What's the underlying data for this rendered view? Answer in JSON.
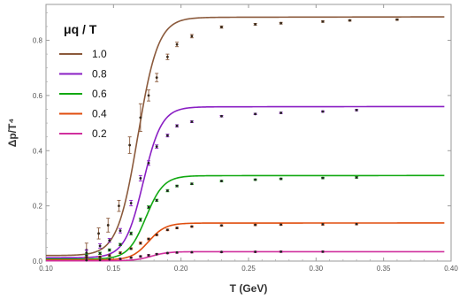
{
  "chart_data": {
    "type": "line",
    "xlabel": "T (GeV)",
    "ylabel": "Δp/T⁴",
    "xlim": [
      0.1,
      0.4
    ],
    "ylim": [
      0,
      0.93
    ],
    "xticks": [
      "0.10",
      "0.15",
      "0.20",
      "0.25",
      "0.30",
      "0.35",
      "0.40"
    ],
    "xtick_values": [
      0.1,
      0.15,
      0.2,
      0.25,
      0.3,
      0.35,
      0.4
    ],
    "yticks": [
      "0.0",
      "0.2",
      "0.4",
      "0.6",
      "0.8"
    ],
    "ytick_values": [
      0,
      0.2,
      0.4,
      0.6,
      0.8
    ],
    "legend_title": "μq / T",
    "legend_position": "top-left",
    "grid": false,
    "series": [
      {
        "name": "1.0",
        "color": "#8b5a3c",
        "curve": {
          "low": 0.0,
          "high": 0.885,
          "tc": 0.168,
          "width": 0.0075,
          "slope": 1.2,
          "base": 0.02
        },
        "points": [
          [
            0.13,
            0.04,
            0.025
          ],
          [
            0.139,
            0.1,
            0.02
          ],
          [
            0.146,
            0.13,
            0.025
          ],
          [
            0.154,
            0.2,
            0.02
          ],
          [
            0.162,
            0.42,
            0.03
          ],
          [
            0.17,
            0.52,
            0.05
          ],
          [
            0.176,
            0.6,
            0.02
          ],
          [
            0.182,
            0.665,
            0.015
          ],
          [
            0.19,
            0.74,
            0.01
          ],
          [
            0.197,
            0.785,
            0.008
          ],
          [
            0.208,
            0.815,
            0.006
          ],
          [
            0.23,
            0.848,
            0.004
          ],
          [
            0.255,
            0.858,
            0.003
          ],
          [
            0.274,
            0.862,
            0.003
          ],
          [
            0.305,
            0.868,
            0.002
          ],
          [
            0.325,
            0.872,
            0.002
          ],
          [
            0.36,
            0.875,
            0.002
          ]
        ]
      },
      {
        "name": "0.8",
        "color": "#8a1fc4",
        "curve": {
          "low": 0.0,
          "high": 0.56,
          "tc": 0.172,
          "width": 0.0068,
          "slope": 0.75,
          "base": 0.012
        },
        "points": [
          [
            0.13,
            0.03,
            0.01
          ],
          [
            0.14,
            0.055,
            0.008
          ],
          [
            0.147,
            0.075,
            0.007
          ],
          [
            0.155,
            0.11,
            0.008
          ],
          [
            0.163,
            0.21,
            0.01
          ],
          [
            0.17,
            0.3,
            0.01
          ],
          [
            0.176,
            0.355,
            0.008
          ],
          [
            0.182,
            0.415,
            0.006
          ],
          [
            0.19,
            0.455,
            0.005
          ],
          [
            0.197,
            0.49,
            0.004
          ],
          [
            0.208,
            0.505,
            0.003
          ],
          [
            0.23,
            0.525,
            0.002
          ],
          [
            0.255,
            0.533,
            0.002
          ],
          [
            0.274,
            0.537,
            0.002
          ],
          [
            0.305,
            0.542,
            0.002
          ],
          [
            0.33,
            0.547,
            0.002
          ]
        ]
      },
      {
        "name": "0.6",
        "color": "#12a912",
        "curve": {
          "low": 0.0,
          "high": 0.31,
          "tc": 0.174,
          "width": 0.0065,
          "slope": 0.45,
          "base": 0.007
        },
        "points": [
          [
            0.13,
            0.02,
            0.005
          ],
          [
            0.14,
            0.028,
            0.004
          ],
          [
            0.147,
            0.04,
            0.004
          ],
          [
            0.155,
            0.06,
            0.004
          ],
          [
            0.163,
            0.1,
            0.005
          ],
          [
            0.17,
            0.15,
            0.006
          ],
          [
            0.176,
            0.195,
            0.005
          ],
          [
            0.182,
            0.22,
            0.004
          ],
          [
            0.19,
            0.255,
            0.004
          ],
          [
            0.197,
            0.272,
            0.003
          ],
          [
            0.208,
            0.28,
            0.002
          ],
          [
            0.23,
            0.29,
            0.002
          ],
          [
            0.255,
            0.295,
            0.002
          ],
          [
            0.274,
            0.298,
            0.002
          ],
          [
            0.305,
            0.301,
            0.002
          ],
          [
            0.33,
            0.303,
            0.002
          ]
        ]
      },
      {
        "name": "0.4",
        "color": "#e04e0e",
        "curve": {
          "low": 0.0,
          "high": 0.138,
          "tc": 0.176,
          "width": 0.0062,
          "slope": 0.2,
          "base": 0.004
        },
        "points": [
          [
            0.13,
            0.012,
            0.003
          ],
          [
            0.14,
            0.015,
            0.003
          ],
          [
            0.147,
            0.02,
            0.003
          ],
          [
            0.155,
            0.03,
            0.003
          ],
          [
            0.163,
            0.045,
            0.003
          ],
          [
            0.17,
            0.065,
            0.004
          ],
          [
            0.176,
            0.08,
            0.003
          ],
          [
            0.182,
            0.095,
            0.003
          ],
          [
            0.19,
            0.113,
            0.003
          ],
          [
            0.197,
            0.12,
            0.002
          ],
          [
            0.208,
            0.125,
            0.002
          ],
          [
            0.23,
            0.129,
            0.002
          ],
          [
            0.255,
            0.131,
            0.002
          ],
          [
            0.274,
            0.132,
            0.002
          ],
          [
            0.305,
            0.133,
            0.002
          ],
          [
            0.33,
            0.134,
            0.002
          ]
        ]
      },
      {
        "name": "0.2",
        "color": "#d0309e",
        "curve": {
          "low": 0.0,
          "high": 0.034,
          "tc": 0.178,
          "width": 0.006,
          "slope": 0.05,
          "base": 0.001
        },
        "points": [
          [
            0.13,
            0.003,
            0.001
          ],
          [
            0.14,
            0.004,
            0.001
          ],
          [
            0.147,
            0.006,
            0.001
          ],
          [
            0.155,
            0.008,
            0.001
          ],
          [
            0.163,
            0.012,
            0.001
          ],
          [
            0.17,
            0.017,
            0.001
          ],
          [
            0.176,
            0.021,
            0.001
          ],
          [
            0.182,
            0.025,
            0.001
          ],
          [
            0.19,
            0.029,
            0.001
          ],
          [
            0.197,
            0.031,
            0.001
          ],
          [
            0.208,
            0.032,
            0.001
          ],
          [
            0.23,
            0.033,
            0.001
          ],
          [
            0.255,
            0.0335,
            0.001
          ],
          [
            0.274,
            0.034,
            0.001
          ],
          [
            0.305,
            0.034,
            0.001
          ]
        ]
      }
    ]
  }
}
